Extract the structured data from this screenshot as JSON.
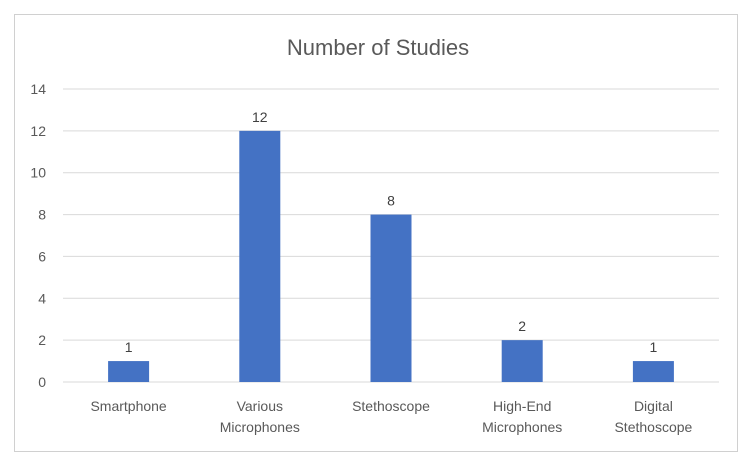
{
  "chart_data": {
    "type": "bar",
    "title": "Number of Studies",
    "categories": [
      [
        "Smartphone"
      ],
      [
        "Various",
        "Microphones"
      ],
      [
        "Stethoscope"
      ],
      [
        "High-End",
        "Microphones"
      ],
      [
        "Digital",
        "Stethoscope"
      ]
    ],
    "values": [
      1,
      12,
      8,
      2,
      1
    ],
    "data_labels": [
      "1",
      "12",
      "8",
      "2",
      "1"
    ],
    "ylim": [
      0,
      14
    ],
    "yticks": [
      0,
      2,
      4,
      6,
      8,
      10,
      12,
      14
    ],
    "grid": true,
    "bar_color": "#4472C4",
    "grid_color": "#d9d9d9",
    "legend": "none"
  }
}
